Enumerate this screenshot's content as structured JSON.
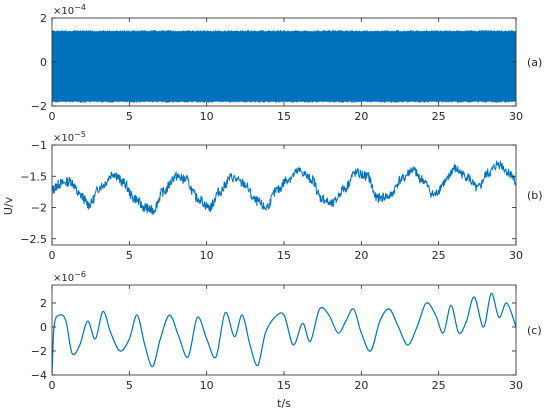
{
  "figure": {
    "ylabel": "U/v",
    "xlabel": "t/s"
  },
  "chart_data": [
    {
      "type": "line",
      "panel_label": "(a)",
      "exponent": "-4",
      "xlim": [
        0,
        30
      ],
      "ylim": [
        -2,
        2
      ],
      "x_ticks": [
        0,
        5,
        10,
        15,
        20,
        25,
        30
      ],
      "y_ticks": [
        -2,
        0,
        2
      ],
      "series": [
        {
          "color": "#0072BD",
          "description_hint": "dense high-frequency noise band",
          "band_min": -1.85,
          "band_max": 1.45,
          "x_start": 0,
          "x_end": 30
        }
      ]
    },
    {
      "type": "line",
      "panel_label": "(b)",
      "exponent": "-5",
      "xlim": [
        0,
        30
      ],
      "ylim": [
        -2.6,
        -1
      ],
      "x_ticks": [
        0,
        5,
        10,
        15,
        20,
        25,
        30
      ],
      "y_ticks": [
        -2.5,
        -2,
        -1.5,
        -1
      ],
      "series": [
        {
          "color": "#0072BD",
          "x": [
            0,
            0.5,
            1.2,
            1.8,
            2.4,
            3.2,
            4.0,
            4.6,
            5.3,
            6.0,
            6.5,
            7.2,
            8.0,
            8.6,
            9.4,
            10.2,
            10.8,
            11.6,
            12.4,
            13.2,
            13.8,
            14.6,
            15.2,
            16.0,
            16.8,
            17.4,
            18.1,
            18.9,
            19.6,
            20.4,
            21.0,
            21.8,
            22.6,
            23.3,
            23.9,
            24.7,
            25.4,
            26.0,
            26.8,
            27.5,
            28.2,
            28.9,
            29.6,
            30.0
          ],
          "values": [
            -1.72,
            -1.62,
            -1.58,
            -1.8,
            -1.95,
            -1.65,
            -1.45,
            -1.6,
            -1.85,
            -2.0,
            -2.05,
            -1.75,
            -1.5,
            -1.55,
            -1.85,
            -2.0,
            -1.75,
            -1.52,
            -1.62,
            -1.9,
            -2.0,
            -1.72,
            -1.55,
            -1.42,
            -1.55,
            -1.85,
            -1.95,
            -1.7,
            -1.45,
            -1.5,
            -1.85,
            -1.82,
            -1.55,
            -1.4,
            -1.55,
            -1.8,
            -1.6,
            -1.38,
            -1.5,
            -1.7,
            -1.45,
            -1.3,
            -1.45,
            -1.6
          ]
        }
      ]
    },
    {
      "type": "line",
      "panel_label": "(c)",
      "exponent": "-6",
      "xlim": [
        0,
        30
      ],
      "ylim": [
        -4,
        3.5
      ],
      "x_ticks": [
        0,
        5,
        10,
        15,
        20,
        25,
        30
      ],
      "y_ticks": [
        -4,
        -2,
        0,
        2
      ],
      "series": [
        {
          "color": "#0072BD",
          "x": [
            0,
            0.15,
            0.5,
            0.9,
            1.3,
            1.8,
            2.3,
            2.8,
            3.3,
            3.8,
            4.4,
            5.0,
            5.5,
            6.0,
            6.5,
            7.0,
            7.6,
            8.2,
            8.8,
            9.4,
            10.0,
            10.6,
            11.2,
            11.8,
            12.3,
            12.8,
            13.3,
            13.8,
            14.4,
            15.0,
            15.6,
            16.2,
            16.7,
            17.3,
            17.9,
            18.5,
            19.0,
            19.5,
            20.0,
            20.6,
            21.2,
            21.8,
            22.4,
            23.0,
            23.6,
            24.2,
            24.8,
            25.3,
            25.8,
            26.3,
            26.8,
            27.3,
            27.9,
            28.4,
            28.9,
            29.4,
            30.0
          ],
          "values": [
            -3.8,
            0.2,
            1.0,
            0.5,
            -2.2,
            -1.5,
            0.5,
            -1.0,
            1.3,
            -0.5,
            -2.0,
            -1.0,
            1.0,
            -1.5,
            -3.3,
            -1.0,
            1.0,
            -0.8,
            -2.5,
            0.8,
            -1.0,
            -2.5,
            1.2,
            -0.8,
            1.0,
            -1.5,
            -3.2,
            -0.5,
            0.8,
            1.0,
            -1.5,
            0.3,
            -1.2,
            1.5,
            1.0,
            -0.5,
            0.5,
            1.5,
            -0.5,
            -2.0,
            0.5,
            1.5,
            0.0,
            -1.5,
            0.0,
            2.0,
            1.0,
            -0.5,
            1.8,
            -0.5,
            0.5,
            2.5,
            0.0,
            2.8,
            0.8,
            2.0,
            0.0
          ]
        }
      ]
    }
  ]
}
